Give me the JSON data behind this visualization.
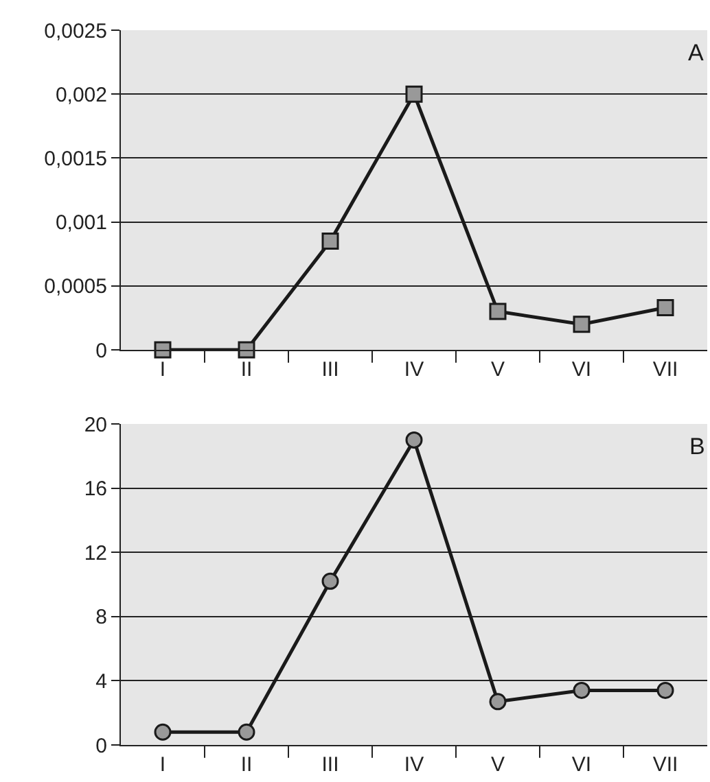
{
  "chart_data": [
    {
      "type": "line",
      "categories": [
        "I",
        "II",
        "III",
        "IV",
        "V",
        "VI",
        "VII"
      ],
      "values": [
        0,
        0,
        0.00085,
        0.002,
        0.0003,
        0.0002,
        0.00033
      ],
      "color": "#1a1a1a",
      "marker": "square",
      "ylim": [
        0,
        0.0025
      ],
      "yticks": [
        0,
        {
          "value": 0.0005,
          "label": "0,0005"
        },
        {
          "value": 0.001,
          "label": "0,001"
        },
        {
          "value": 0.0015,
          "label": "0,0015"
        },
        {
          "value": 0.002,
          "label": "0,002"
        },
        {
          "value": 0.0025,
          "label": "0,0025"
        }
      ],
      "grid": "y",
      "annotations": [
        "A"
      ]
    },
    {
      "type": "line",
      "categories": [
        "I",
        "II",
        "III",
        "IV",
        "V",
        "VI",
        "VII"
      ],
      "values": [
        0.8,
        0.8,
        10.2,
        19,
        2.7,
        3.4,
        3.4
      ],
      "color": "#1a1a1a",
      "marker": "circle",
      "ylim": [
        0,
        20
      ],
      "yticks": [
        0,
        4,
        8,
        12,
        16,
        20
      ],
      "grid": "y",
      "annotations": [
        "B"
      ]
    }
  ]
}
